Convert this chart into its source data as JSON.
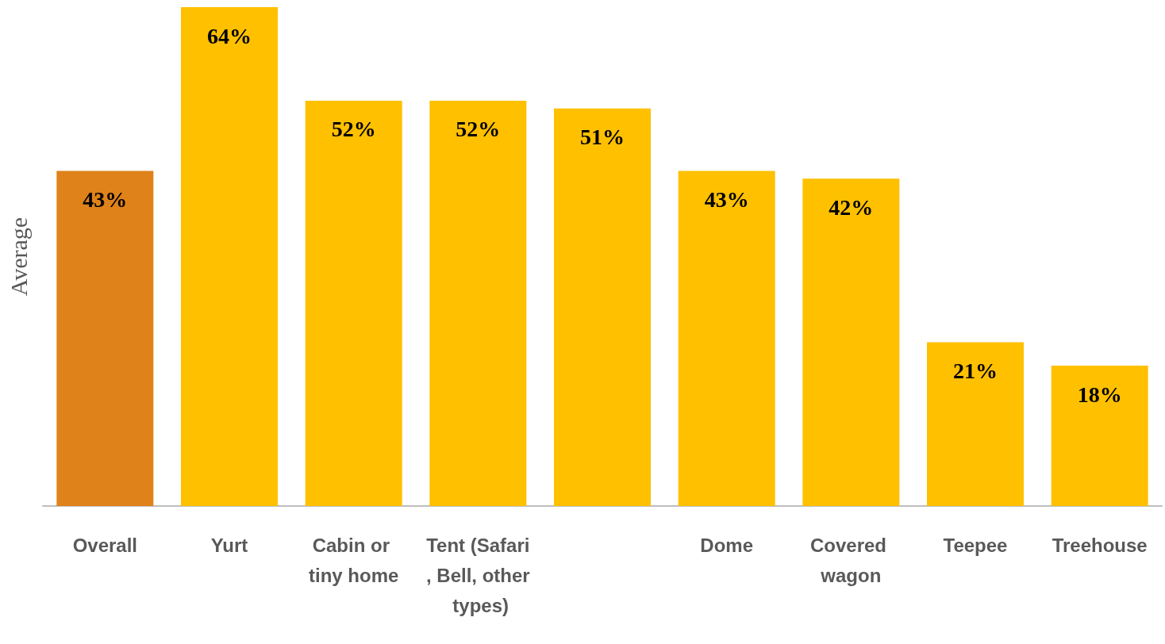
{
  "chart_data": {
    "type": "bar",
    "ylabel": "Average",
    "categories": [
      "Overall",
      "Yurt",
      "Cabin or tiny home",
      "Tent (Safari, Bell, other types)",
      null,
      "Dome",
      "Covered wagon",
      "Teepee",
      "Treehouse"
    ],
    "values": [
      43,
      64,
      52,
      52,
      51,
      43,
      42,
      21,
      18
    ],
    "colors": [
      "#e0821a",
      "#ffc000",
      "#ffc000",
      "#ffc000",
      "#ffc000",
      "#ffc000",
      "#ffc000",
      "#ffc000",
      "#ffc000"
    ],
    "value_labels": [
      "43%",
      "64%",
      "52%",
      "52%",
      "51%",
      "43%",
      "42%",
      "21%",
      "18%"
    ]
  }
}
